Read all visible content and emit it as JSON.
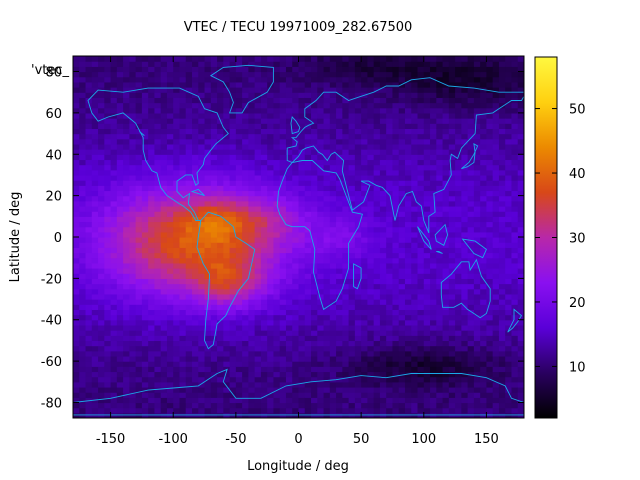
{
  "chart_data": {
    "type": "heatmap",
    "title": "VTEC / TECU 19971009_282.67500",
    "xlabel": "Longitude / deg",
    "ylabel": "Latitude / deg",
    "xlim": [
      -180,
      180
    ],
    "ylim": [
      -87.5,
      87.5
    ],
    "xticks": [
      "-150",
      "-100",
      "-50",
      "0",
      "50",
      "100",
      "150"
    ],
    "yticks": [
      "80",
      "60",
      "40",
      "20",
      "0",
      "-20",
      "-40",
      "-60",
      "-80"
    ],
    "colorbar": {
      "min": 2,
      "max": 58,
      "ticks": [
        "10",
        "20",
        "30",
        "40",
        "50"
      ]
    },
    "legend_label": "'vtec_",
    "colormap": [
      "#000000",
      "#2a0060",
      "#5a00d8",
      "#8a10f0",
      "#b828a8",
      "#d84818",
      "#ec8a00",
      "#ffd010",
      "#fff840"
    ],
    "coastline_color": "#1aa8e8",
    "grid": false
  }
}
